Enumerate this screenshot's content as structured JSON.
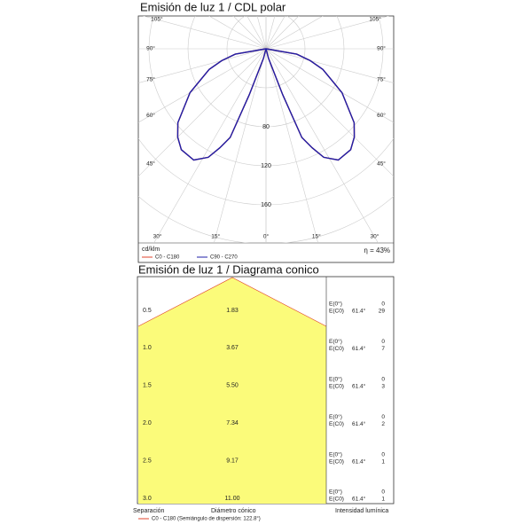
{
  "chart_data": [
    {
      "type": "polar",
      "title": "Emisión de luz 1 / CDL polar",
      "angle_ticks": [
        {
          "value": 105,
          "label": "105°"
        },
        {
          "value": 90,
          "label": "90°"
        },
        {
          "value": 75,
          "label": "75°"
        },
        {
          "value": 60,
          "label": "60°"
        },
        {
          "value": 45,
          "label": "45°"
        },
        {
          "value": 30,
          "label": "30°"
        },
        {
          "value": 15,
          "label": "15°"
        },
        {
          "value": 0,
          "label": "0°"
        }
      ],
      "rlim": [
        0,
        240
      ],
      "rticks": [
        80,
        120,
        160
      ],
      "unit": "cd/klm",
      "efficiency": "η = 43%",
      "x": [
        0,
        10,
        15,
        20,
        22,
        25,
        28,
        33,
        40,
        45,
        50,
        60,
        70,
        75,
        80,
        90
      ],
      "series": [
        {
          "name": "C0 - C180",
          "color": "#e0442c",
          "values": [
            0,
            0,
            10,
            50,
            98,
            112,
            126,
            136,
            135,
            128,
            118,
            90,
            62,
            47,
            32,
            0
          ]
        },
        {
          "name": "C90 - C270",
          "color": "#1f1fa8",
          "values": [
            0,
            0,
            10,
            50,
            98,
            112,
            126,
            136,
            135,
            128,
            118,
            90,
            62,
            47,
            32,
            0
          ]
        }
      ]
    },
    {
      "type": "cone",
      "title": "Emisión de luz 1 / Diagrama conico",
      "e0_label": "E(0°)",
      "ec0_label": "E(C0)",
      "angle": "61.4°",
      "rows": [
        {
          "height": "0.5",
          "diameter": "1.83",
          "e0": "0",
          "ec0": "29"
        },
        {
          "height": "1.0",
          "diameter": "3.67",
          "e0": "0",
          "ec0": "7"
        },
        {
          "height": "1.5",
          "diameter": "5.50",
          "e0": "0",
          "ec0": "3"
        },
        {
          "height": "2.0",
          "diameter": "7.34",
          "e0": "0",
          "ec0": "2"
        },
        {
          "height": "2.5",
          "diameter": "9.17",
          "e0": "0",
          "ec0": "1"
        },
        {
          "height": "3.0",
          "diameter": "11.00",
          "e0": "0",
          "ec0": "1"
        }
      ],
      "footer": {
        "separation": "Separación",
        "diameter": "Diámetro cónico",
        "intensity": "Intensidad lumínica"
      },
      "legend": "C0 - C180 (Semiángulo de dispersión: 122.8°)",
      "legend_color": "#e0442c"
    }
  ]
}
